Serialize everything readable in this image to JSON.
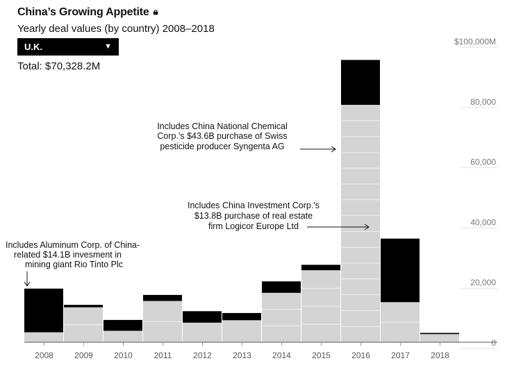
{
  "header": {
    "title": "China’s Growing Appetite",
    "lock_icon": "lock-icon",
    "subtitle": "Yearly deal values (by country) 2008–2018",
    "total": "Total: $70,328.2M"
  },
  "dropdown": {
    "selected": "U.K.",
    "arrow": "▼"
  },
  "chart_data": {
    "type": "bar",
    "stacked": true,
    "categories": [
      "2008",
      "2009",
      "2010",
      "2011",
      "2012",
      "2013",
      "2014",
      "2015",
      "2016",
      "2017",
      "2018"
    ],
    "series": [
      {
        "color": "#000000",
        "values": [
          14500,
          800,
          3600,
          2000,
          3800,
          2400,
          3800,
          1800,
          14900,
          21100,
          400
        ]
      },
      {
        "color": "#d4d4d4",
        "values": [
          3300,
          11600,
          3800,
          13700,
          6500,
          7300,
          16400,
          23900,
          78800,
          13300,
          2700
        ]
      }
    ],
    "yaxis": {
      "ylim": [
        0,
        100000
      ],
      "ticks": [
        0,
        20000,
        40000,
        60000,
        80000,
        100000
      ],
      "tick_labels": [
        "0",
        "20,000",
        "40,000",
        "60,000",
        "80,000",
        "$100,000M"
      ],
      "position": "right"
    },
    "annotations": [
      {
        "lines": [
          "Includes China National Chemical",
          "Corp.'s $43.6B purchase of Swiss",
          "pesticide producer Syngenta AG"
        ],
        "target_category": "2016",
        "target_value": 65000,
        "arrow": "right"
      },
      {
        "lines": [
          "Includes China Investment Corp.'s",
          "$13.8B purchase of real estate",
          "firm Logicor Europe Ltd"
        ],
        "target_category": "2016",
        "target_value": 39500,
        "arrow": "right"
      },
      {
        "lines": [
          "Includes Aluminum Corp. of China-",
          "related $14.1B invesment in",
          "mining giant Rio Tinto Plc"
        ],
        "target_category": "2008",
        "target_value": 18500,
        "arrow": "down"
      }
    ],
    "legend": "none",
    "grid": false
  }
}
